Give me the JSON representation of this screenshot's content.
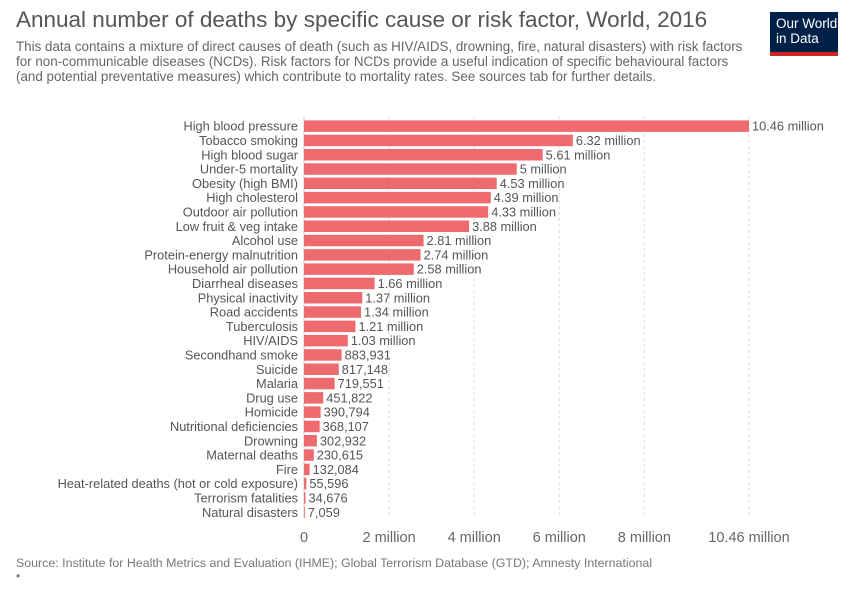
{
  "header": {
    "title": "Annual number of deaths by specific cause or risk factor, World, 2016",
    "subtitle": "This data contains a mixture of direct causes of death (such as HIV/AIDS, drowning, fire, natural disasters) with risk factors for non-communicable diseases (NCDs). Risk factors for NCDs provide a useful indication of specific behavioural factors (and potential preventative measures) which contribute to mortality rates. See sources tab for further details."
  },
  "logo": {
    "line1": "Our World",
    "line2": "in Data"
  },
  "footer": {
    "source": "Source: Institute for Health Metrics and Evaluation (IHME); Global Terrorism Database (GTD); Amnesty International",
    "bullet": "•"
  },
  "colors": {
    "bar": "#ed6b6f",
    "grid": "#dddddd",
    "label": "#555555",
    "value": "#555555"
  },
  "chart_data": {
    "type": "bar",
    "orientation": "horizontal",
    "categories": [
      "High blood pressure",
      "Tobacco smoking",
      "High blood sugar",
      "Under-5 mortality",
      "Obesity (high BMI)",
      "High cholesterol",
      "Outdoor air pollution",
      "Low fruit & veg intake",
      "Alcohol use",
      "Protein-energy malnutrition",
      "Household air pollution",
      "Diarrheal diseases",
      "Physical inactivity",
      "Road accidents",
      "Tuberculosis",
      "HIV/AIDS",
      "Secondhand smoke",
      "Suicide",
      "Malaria",
      "Drug use",
      "Homicide",
      "Nutritional deficiencies",
      "Drowning",
      "Maternal deaths",
      "Fire",
      "Heat-related deaths (hot or cold exposure)",
      "Terrorism fatalities",
      "Natural disasters"
    ],
    "values": [
      10460000,
      6320000,
      5610000,
      5000000,
      4530000,
      4390000,
      4330000,
      3880000,
      2810000,
      2740000,
      2580000,
      1660000,
      1370000,
      1340000,
      1210000,
      1030000,
      883931,
      817148,
      719551,
      451822,
      390794,
      368107,
      302932,
      230615,
      132084,
      55596,
      34676,
      7059
    ],
    "value_labels": [
      "10.46 million",
      "6.32 million",
      "5.61 million",
      "5 million",
      "4.53 million",
      "4.39 million",
      "4.33 million",
      "3.88 million",
      "2.81 million",
      "2.74 million",
      "2.58 million",
      "1.66 million",
      "1.37 million",
      "1.34 million",
      "1.21 million",
      "1.03 million",
      "883,931",
      "817,148",
      "719,551",
      "451,822",
      "390,794",
      "368,107",
      "302,932",
      "230,615",
      "132,084",
      "55,596",
      "34,676",
      "7,059"
    ],
    "x_ticks": [
      0,
      2000000,
      4000000,
      6000000,
      8000000,
      10460000
    ],
    "x_tick_labels": [
      "0",
      "2 million",
      "4 million",
      "6 million",
      "8 million",
      "10.46 million"
    ],
    "xlim": [
      0,
      10460000
    ],
    "grid": "vertical dashed",
    "legend": "none"
  }
}
